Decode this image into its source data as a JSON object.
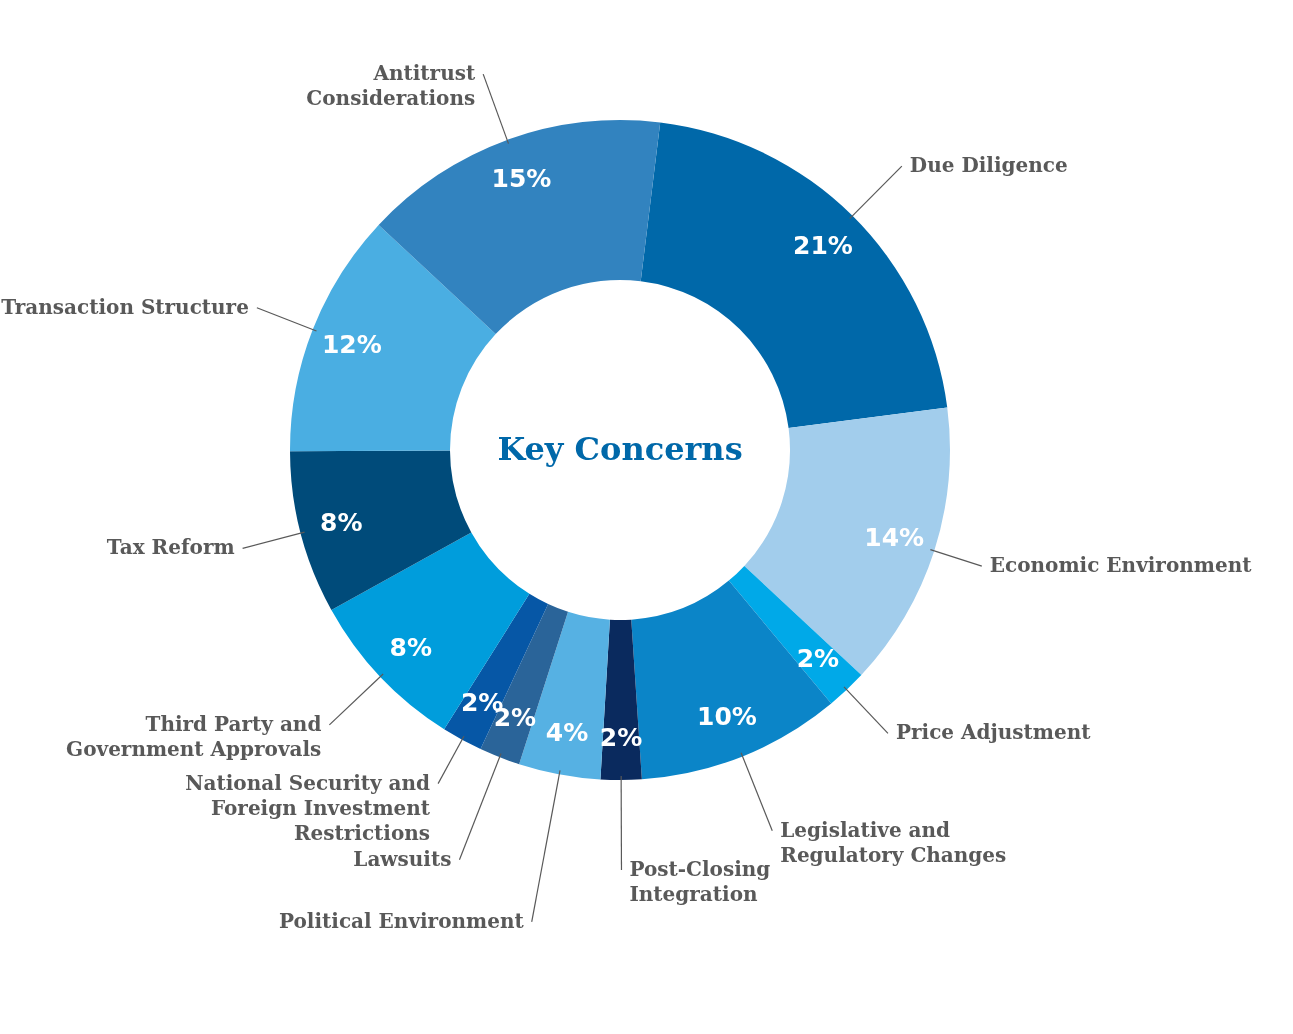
{
  "chart_data": {
    "type": "donut",
    "title": "Key Concerns",
    "categories": [
      "Due Diligence",
      "Economic Environment",
      "Price Adjustment",
      "Legislative and Regulatory Changes",
      "Post-Closing Integration",
      "Political Environment",
      "Lawsuits",
      "National Security and Foreign Investment Restrictions",
      "Third Party and Government Approvals",
      "Tax Reform",
      "Transaction Structure",
      "Antitrust Considerations"
    ],
    "values": [
      21,
      14,
      2,
      10,
      2,
      4,
      2,
      2,
      8,
      8,
      12,
      15
    ],
    "value_labels": [
      "21%",
      "14%",
      "2%",
      "10%",
      "2%",
      "4%",
      "2%",
      "2%",
      "8%",
      "8%",
      "12%",
      "15%"
    ],
    "colors": [
      "#0068a9",
      "#a2cdec",
      "#00a9e8",
      "#0b85c8",
      "#0a2a5e",
      "#56b1e3",
      "#2a6499",
      "#0657a6",
      "#009ddc",
      "#004b7a",
      "#4aaee2",
      "#3283bf"
    ]
  }
}
